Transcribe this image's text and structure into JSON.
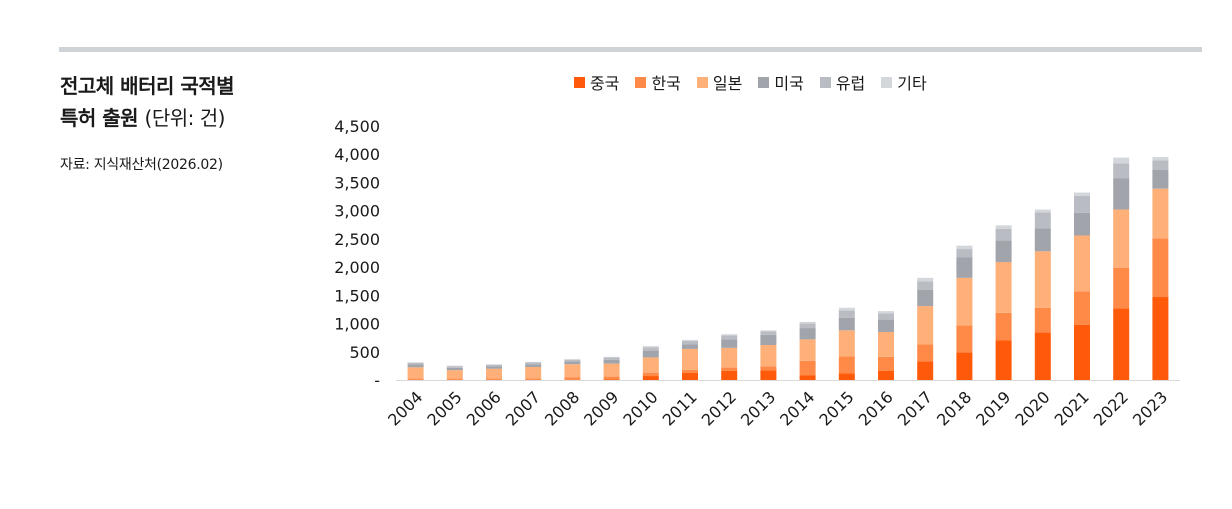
{
  "title": {
    "line1": "전고체 배터리 국적별",
    "line2": "특허 출원",
    "unit": "(단위: 건)"
  },
  "source": "자료: 지식재산처(2026.02)",
  "chart_data": {
    "type": "bar",
    "stacked": true,
    "categories": [
      "2004",
      "2005",
      "2006",
      "2007",
      "2008",
      "2009",
      "2010",
      "2011",
      "2012",
      "2013",
      "2014",
      "2015",
      "2016",
      "2017",
      "2018",
      "2019",
      "2020",
      "2021",
      "2022",
      "2023"
    ],
    "series": [
      {
        "name": "중국",
        "color": "#ff5a0a",
        "values": [
          5,
          5,
          5,
          5,
          5,
          10,
          70,
          130,
          160,
          170,
          80,
          120,
          160,
          330,
          490,
          700,
          840,
          980,
          1270,
          1470
        ]
      },
      {
        "name": "한국",
        "color": "#ff8a48",
        "values": [
          20,
          20,
          20,
          25,
          45,
          50,
          60,
          50,
          60,
          70,
          260,
          300,
          250,
          300,
          480,
          490,
          440,
          590,
          720,
          1040
        ]
      },
      {
        "name": "일본",
        "color": "#ffaf78",
        "values": [
          200,
          150,
          175,
          200,
          230,
          230,
          270,
          370,
          350,
          380,
          380,
          460,
          440,
          680,
          840,
          900,
          1000,
          990,
          1030,
          880
        ]
      },
      {
        "name": "미국",
        "color": "#a1a4ab",
        "values": [
          50,
          40,
          40,
          50,
          50,
          70,
          120,
          80,
          150,
          180,
          200,
          220,
          220,
          290,
          360,
          380,
          410,
          400,
          550,
          330
        ]
      },
      {
        "name": "유럽",
        "color": "#b9bcc2",
        "values": [
          30,
          30,
          30,
          30,
          30,
          40,
          60,
          60,
          70,
          60,
          80,
          130,
          110,
          150,
          150,
          210,
          280,
          300,
          270,
          170
        ]
      },
      {
        "name": "기타",
        "color": "#d3d6da",
        "values": [
          10,
          10,
          10,
          10,
          10,
          10,
          20,
          20,
          20,
          20,
          30,
          50,
          40,
          60,
          60,
          60,
          50,
          60,
          100,
          60
        ]
      }
    ],
    "ylim": [
      0,
      4500
    ],
    "yticks": [
      0,
      500,
      1000,
      1500,
      2000,
      2500,
      3000,
      3500,
      4000,
      4500
    ],
    "ytick_labels": [
      "-",
      "500",
      "1,000",
      "1,500",
      "2,000",
      "2,500",
      "3,000",
      "3,500",
      "4,000",
      "4,500"
    ],
    "legend": "top",
    "grid": false
  }
}
